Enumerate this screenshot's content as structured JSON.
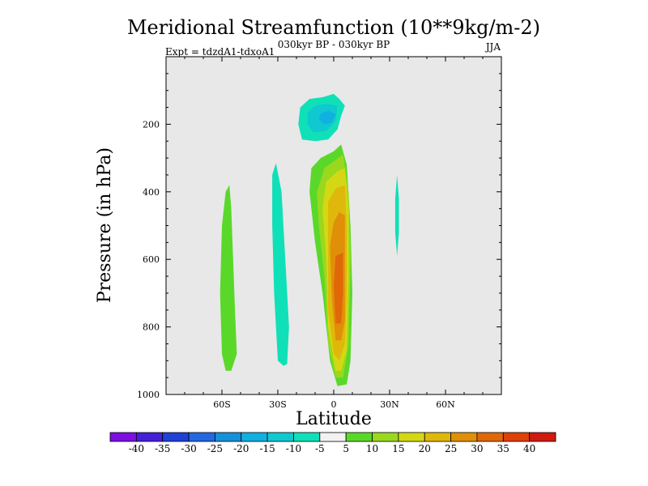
{
  "chart_data": {
    "type": "contour",
    "title": "Meridional Streamfunction (10**9kg/m-2)",
    "subtitle_left": "Expt = tdzdA1-tdxoA1",
    "subtitle_center": "030kyr BP - 030kyr BP",
    "subtitle_right": "JJA",
    "xlabel": "Latitude",
    "ylabel": "Pressure (in hPa)",
    "xlim": [
      -90,
      90
    ],
    "ylim": [
      1000,
      0
    ],
    "x_ticks": [
      {
        "value": -60,
        "label": "60S"
      },
      {
        "value": -30,
        "label": "30S"
      },
      {
        "value": 0,
        "label": "0"
      },
      {
        "value": 30,
        "label": "30N"
      },
      {
        "value": 60,
        "label": "60N"
      }
    ],
    "y_ticks": [
      {
        "value": 200,
        "label": "200"
      },
      {
        "value": 400,
        "label": "400"
      },
      {
        "value": 600,
        "label": "600"
      },
      {
        "value": 800,
        "label": "800"
      },
      {
        "value": 1000,
        "label": "1000"
      }
    ],
    "background_color": "#e8e8e8",
    "colorbar": {
      "levels": [
        "-40",
        "-35",
        "-30",
        "-25",
        "-20",
        "-15",
        "-10",
        "-5",
        "5",
        "10",
        "15",
        "20",
        "25",
        "30",
        "35",
        "40"
      ],
      "colors": [
        "#7d0fe0",
        "#4520d8",
        "#2040d8",
        "#2268e0",
        "#1690d8",
        "#10b0e0",
        "#10c8d0",
        "#10e0b8",
        "#f2f2f2",
        "#5ad82a",
        "#9ad81e",
        "#d4d814",
        "#e0b80c",
        "#e09008",
        "#e06808",
        "#e04008",
        "#d01a10"
      ]
    },
    "regions": [
      {
        "level": 1,
        "color": "#5ad82a",
        "points": [
          [
            -56,
            380
          ],
          [
            -55,
            450
          ],
          [
            -54,
            600
          ],
          [
            -53,
            750
          ],
          [
            -52,
            880
          ],
          [
            -55,
            930
          ],
          [
            -58,
            930
          ],
          [
            -60,
            880
          ],
          [
            -61,
            700
          ],
          [
            -60,
            500
          ],
          [
            -58,
            400
          ]
        ]
      },
      {
        "level": -1,
        "color": "#10e0b8",
        "points": [
          [
            -31,
            315
          ],
          [
            -28,
            400
          ],
          [
            -26,
            600
          ],
          [
            -24,
            800
          ],
          [
            -25,
            910
          ],
          [
            -27,
            915
          ],
          [
            -30,
            900
          ],
          [
            -32,
            700
          ],
          [
            -33,
            500
          ],
          [
            -33,
            350
          ]
        ]
      },
      {
        "level": 1,
        "color": "#5ad82a",
        "points": [
          [
            4,
            260
          ],
          [
            7,
            320
          ],
          [
            9,
            500
          ],
          [
            10,
            700
          ],
          [
            9,
            900
          ],
          [
            7,
            970
          ],
          [
            2,
            975
          ],
          [
            -2,
            900
          ],
          [
            -6,
            700
          ],
          [
            -10,
            550
          ],
          [
            -13,
            400
          ],
          [
            -12,
            330
          ],
          [
            -7,
            300
          ],
          [
            0,
            280
          ]
        ]
      },
      {
        "level": 2,
        "color": "#9ad81e",
        "points": [
          [
            5,
            290
          ],
          [
            8,
            400
          ],
          [
            9,
            600
          ],
          [
            8,
            850
          ],
          [
            5,
            950
          ],
          [
            1,
            950
          ],
          [
            -3,
            850
          ],
          [
            -5,
            650
          ],
          [
            -8,
            500
          ],
          [
            -9,
            400
          ],
          [
            -5,
            330
          ]
        ]
      },
      {
        "level": 3,
        "color": "#d4d814",
        "points": [
          [
            6,
            330
          ],
          [
            8,
            450
          ],
          [
            8,
            650
          ],
          [
            7,
            870
          ],
          [
            4,
            930
          ],
          [
            1,
            930
          ],
          [
            -3,
            800
          ],
          [
            -4,
            600
          ],
          [
            -6,
            450
          ],
          [
            -4,
            370
          ],
          [
            2,
            340
          ]
        ]
      },
      {
        "level": 4,
        "color": "#e0b80c",
        "points": [
          [
            6,
            380
          ],
          [
            7,
            500
          ],
          [
            7,
            700
          ],
          [
            6,
            850
          ],
          [
            3,
            900
          ],
          [
            0,
            880
          ],
          [
            -3,
            750
          ],
          [
            -3,
            550
          ],
          [
            -3,
            430
          ],
          [
            1,
            390
          ]
        ]
      },
      {
        "level": 5,
        "color": "#e09008",
        "points": [
          [
            6,
            470
          ],
          [
            6,
            620
          ],
          [
            6,
            780
          ],
          [
            4,
            840
          ],
          [
            1,
            840
          ],
          [
            -1,
            720
          ],
          [
            -2,
            560
          ],
          [
            0,
            490
          ],
          [
            3,
            460
          ]
        ]
      },
      {
        "level": 6,
        "color": "#e06808",
        "points": [
          [
            5,
            580
          ],
          [
            5,
            700
          ],
          [
            4,
            790
          ],
          [
            1,
            790
          ],
          [
            0,
            680
          ],
          [
            1,
            590
          ]
        ]
      },
      {
        "level": -1,
        "color": "#10e0b8",
        "points": [
          [
            -6,
            120
          ],
          [
            0,
            110
          ],
          [
            3,
            125
          ],
          [
            6,
            145
          ],
          [
            4,
            175
          ],
          [
            2,
            215
          ],
          [
            -3,
            245
          ],
          [
            -10,
            250
          ],
          [
            -17,
            245
          ],
          [
            -19,
            200
          ],
          [
            -18,
            150
          ],
          [
            -13,
            125
          ]
        ]
      },
      {
        "level": -2,
        "color": "#10c8d0",
        "points": [
          [
            -4,
            140
          ],
          [
            2,
            145
          ],
          [
            1,
            190
          ],
          [
            -4,
            220
          ],
          [
            -11,
            225
          ],
          [
            -14,
            200
          ],
          [
            -14,
            165
          ],
          [
            -10,
            145
          ]
        ]
      },
      {
        "level": -3,
        "color": "#10b0e0",
        "points": [
          [
            -3,
            160
          ],
          [
            1,
            170
          ],
          [
            -1,
            195
          ],
          [
            -5,
            200
          ],
          [
            -8,
            185
          ],
          [
            -7,
            168
          ]
        ]
      },
      {
        "level": -1,
        "color": "#10e0b8",
        "points": [
          [
            34,
            350
          ],
          [
            35,
            420
          ],
          [
            35,
            520
          ],
          [
            34,
            590
          ],
          [
            33,
            520
          ],
          [
            33,
            420
          ]
        ]
      }
    ]
  }
}
